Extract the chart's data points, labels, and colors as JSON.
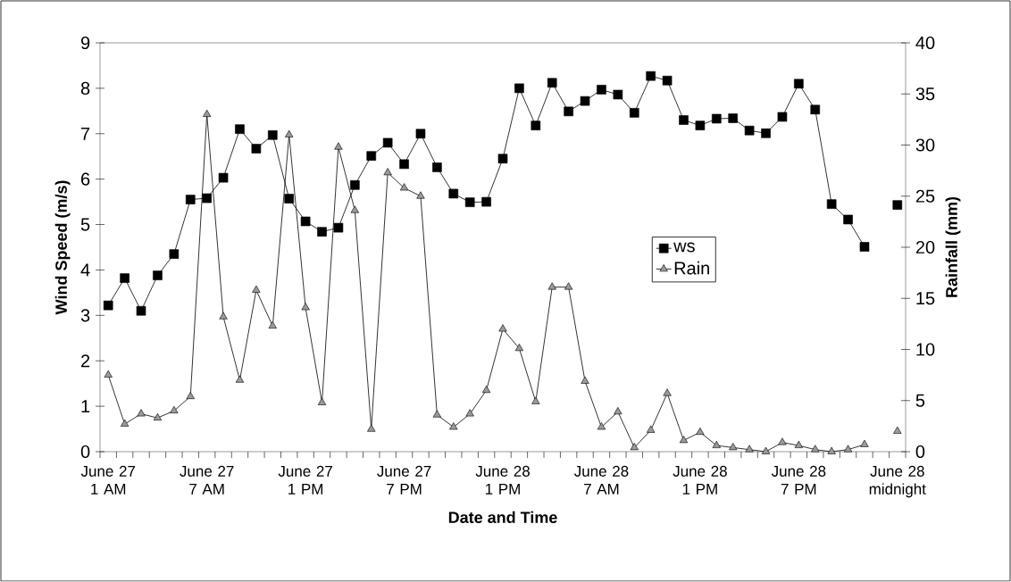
{
  "chart_data": {
    "type": "line",
    "xlabel": "Date and Time",
    "ylabel": "Wind Speed (m/s)",
    "y2label": "Rainfall (mm)",
    "categories": [
      "June 27 1 AM",
      null,
      null,
      null,
      null,
      null,
      "June 27 7 AM",
      null,
      null,
      null,
      null,
      null,
      "June 27 1 PM",
      null,
      null,
      null,
      null,
      null,
      "June 27 7 PM",
      null,
      null,
      null,
      null,
      null,
      "June 28 1 PM",
      null,
      null,
      null,
      null,
      null,
      "June 28 7 AM",
      null,
      null,
      null,
      null,
      null,
      "June 28 1 PM",
      null,
      null,
      null,
      null,
      null,
      "June 28 7 PM",
      null,
      null,
      null,
      null,
      null,
      "June 28 midnight"
    ],
    "series": [
      {
        "name": "ws",
        "color": "#000000",
        "marker": "square",
        "values": [
          3.22,
          3.82,
          3.1,
          3.88,
          4.35,
          5.55,
          5.58,
          6.03,
          7.1,
          6.67,
          6.97,
          5.57,
          5.07,
          4.84,
          4.93,
          5.87,
          6.51,
          6.8,
          6.33,
          7.0,
          6.26,
          5.68,
          5.49,
          5.5,
          6.45,
          8.0,
          7.18,
          8.12,
          7.49,
          7.72,
          7.97,
          7.86,
          7.46,
          8.27,
          8.17,
          7.3,
          7.18,
          7.33,
          7.34,
          7.07,
          7.01,
          7.37,
          8.1,
          7.53,
          5.45,
          5.11,
          4.51,
          null,
          5.43
        ]
      },
      {
        "name": "Rain",
        "color": "#9a9a9a",
        "marker": "triangle",
        "axis": "y2",
        "values": [
          7.5,
          2.7,
          3.7,
          3.3,
          4.0,
          5.4,
          33,
          13.2,
          7.0,
          15.8,
          12.3,
          31.0,
          14.1,
          4.8,
          29.8,
          23.6,
          2.2,
          27.3,
          25.8,
          25.0,
          3.6,
          2.4,
          3.7,
          6.0,
          12.0,
          10.1,
          4.9,
          16.1,
          16.1,
          6.9,
          2.4,
          3.9,
          0.4,
          2.1,
          5.7,
          1.1,
          1.9,
          0.6,
          0.4,
          0.2,
          0,
          0.9,
          0.6,
          0.2,
          0,
          0.2,
          0.7,
          null,
          2.0
        ]
      }
    ],
    "ylim": [
      0,
      9
    ],
    "yticks": [
      0,
      1,
      2,
      3,
      4,
      5,
      6,
      7,
      8,
      9
    ],
    "y2lim": [
      0,
      40
    ],
    "y2ticks": [
      0,
      5,
      10,
      15,
      20,
      25,
      30,
      35,
      40
    ],
    "legend": "right"
  }
}
